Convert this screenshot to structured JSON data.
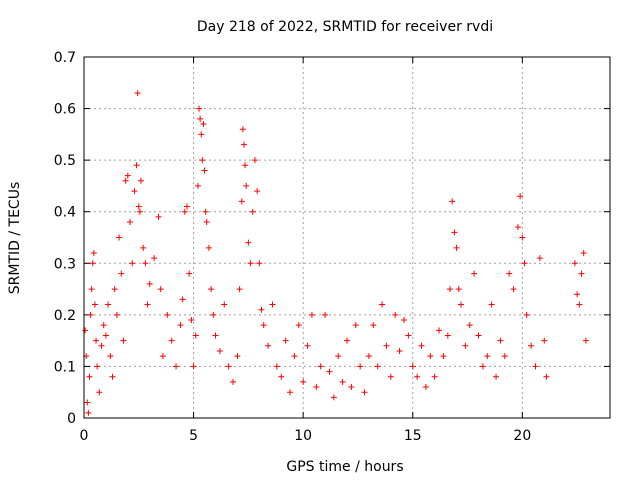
{
  "chart_data": {
    "type": "scatter",
    "title": "Day 218 of 2022, SRMTID for receiver rvdi",
    "xlabel": "GPS time / hours",
    "ylabel": "SRMTID / TECUs",
    "xlim": [
      0,
      24
    ],
    "ylim": [
      0,
      0.7
    ],
    "xticks": [
      0,
      5,
      10,
      15,
      20
    ],
    "xtick_labels": [
      "0",
      "5",
      "10",
      "15",
      "20"
    ],
    "yticks": [
      0,
      0.1,
      0.2,
      0.3,
      0.4,
      0.5,
      0.6,
      0.7
    ],
    "ytick_labels": [
      "0",
      "0.1",
      "0.2",
      "0.3",
      "0.4",
      "0.5",
      "0.6",
      "0.7"
    ],
    "grid": true,
    "marker": "+",
    "color": "#ff0000",
    "series": [
      {
        "name": "SRMTID",
        "points": [
          [
            0.05,
            0.17
          ],
          [
            0.1,
            0.12
          ],
          [
            0.15,
            0.03
          ],
          [
            0.2,
            0.01
          ],
          [
            0.25,
            0.08
          ],
          [
            0.3,
            0.2
          ],
          [
            0.35,
            0.25
          ],
          [
            0.4,
            0.3
          ],
          [
            0.45,
            0.32
          ],
          [
            0.5,
            0.22
          ],
          [
            0.55,
            0.15
          ],
          [
            0.6,
            0.1
          ],
          [
            0.7,
            0.05
          ],
          [
            0.8,
            0.14
          ],
          [
            0.9,
            0.18
          ],
          [
            1.0,
            0.16
          ],
          [
            1.1,
            0.22
          ],
          [
            1.2,
            0.12
          ],
          [
            1.3,
            0.08
          ],
          [
            1.4,
            0.25
          ],
          [
            1.5,
            0.2
          ],
          [
            1.6,
            0.35
          ],
          [
            1.7,
            0.28
          ],
          [
            1.8,
            0.15
          ],
          [
            1.9,
            0.46
          ],
          [
            2.0,
            0.47
          ],
          [
            2.1,
            0.38
          ],
          [
            2.2,
            0.3
          ],
          [
            2.3,
            0.44
          ],
          [
            2.4,
            0.49
          ],
          [
            2.45,
            0.63
          ],
          [
            2.5,
            0.41
          ],
          [
            2.55,
            0.4
          ],
          [
            2.6,
            0.46
          ],
          [
            2.7,
            0.33
          ],
          [
            2.8,
            0.3
          ],
          [
            2.9,
            0.22
          ],
          [
            3.0,
            0.26
          ],
          [
            3.2,
            0.31
          ],
          [
            3.4,
            0.39
          ],
          [
            3.5,
            0.25
          ],
          [
            3.6,
            0.12
          ],
          [
            3.8,
            0.2
          ],
          [
            4.0,
            0.15
          ],
          [
            4.2,
            0.1
          ],
          [
            4.4,
            0.18
          ],
          [
            4.5,
            0.23
          ],
          [
            4.6,
            0.4
          ],
          [
            4.7,
            0.41
          ],
          [
            4.8,
            0.28
          ],
          [
            4.9,
            0.19
          ],
          [
            5.0,
            0.1
          ],
          [
            5.1,
            0.16
          ],
          [
            5.2,
            0.45
          ],
          [
            5.25,
            0.6
          ],
          [
            5.3,
            0.58
          ],
          [
            5.35,
            0.55
          ],
          [
            5.4,
            0.5
          ],
          [
            5.45,
            0.57
          ],
          [
            5.5,
            0.48
          ],
          [
            5.55,
            0.4
          ],
          [
            5.6,
            0.38
          ],
          [
            5.7,
            0.33
          ],
          [
            5.8,
            0.25
          ],
          [
            5.9,
            0.2
          ],
          [
            6.0,
            0.16
          ],
          [
            6.2,
            0.13
          ],
          [
            6.4,
            0.22
          ],
          [
            6.6,
            0.1
          ],
          [
            6.8,
            0.07
          ],
          [
            7.0,
            0.12
          ],
          [
            7.1,
            0.25
          ],
          [
            7.2,
            0.42
          ],
          [
            7.25,
            0.56
          ],
          [
            7.3,
            0.53
          ],
          [
            7.35,
            0.49
          ],
          [
            7.4,
            0.45
          ],
          [
            7.5,
            0.34
          ],
          [
            7.6,
            0.3
          ],
          [
            7.7,
            0.4
          ],
          [
            7.8,
            0.5
          ],
          [
            7.9,
            0.44
          ],
          [
            8.0,
            0.3
          ],
          [
            8.1,
            0.21
          ],
          [
            8.2,
            0.18
          ],
          [
            8.4,
            0.14
          ],
          [
            8.6,
            0.22
          ],
          [
            8.8,
            0.1
          ],
          [
            9.0,
            0.08
          ],
          [
            9.2,
            0.15
          ],
          [
            9.4,
            0.05
          ],
          [
            9.6,
            0.12
          ],
          [
            9.8,
            0.18
          ],
          [
            10.0,
            0.07
          ],
          [
            10.2,
            0.14
          ],
          [
            10.4,
            0.2
          ],
          [
            10.6,
            0.06
          ],
          [
            10.8,
            0.1
          ],
          [
            11.0,
            0.2
          ],
          [
            11.2,
            0.09
          ],
          [
            11.4,
            0.04
          ],
          [
            11.6,
            0.12
          ],
          [
            11.8,
            0.07
          ],
          [
            12.0,
            0.15
          ],
          [
            12.2,
            0.06
          ],
          [
            12.4,
            0.18
          ],
          [
            12.6,
            0.1
          ],
          [
            12.8,
            0.05
          ],
          [
            13.0,
            0.12
          ],
          [
            13.2,
            0.18
          ],
          [
            13.4,
            0.1
          ],
          [
            13.6,
            0.22
          ],
          [
            13.8,
            0.14
          ],
          [
            14.0,
            0.08
          ],
          [
            14.2,
            0.2
          ],
          [
            14.4,
            0.13
          ],
          [
            14.6,
            0.19
          ],
          [
            14.8,
            0.16
          ],
          [
            15.0,
            0.1
          ],
          [
            15.2,
            0.08
          ],
          [
            15.4,
            0.14
          ],
          [
            15.6,
            0.06
          ],
          [
            15.8,
            0.12
          ],
          [
            16.0,
            0.08
          ],
          [
            16.2,
            0.17
          ],
          [
            16.4,
            0.12
          ],
          [
            16.6,
            0.16
          ],
          [
            16.7,
            0.25
          ],
          [
            16.8,
            0.42
          ],
          [
            16.9,
            0.36
          ],
          [
            17.0,
            0.33
          ],
          [
            17.1,
            0.25
          ],
          [
            17.2,
            0.22
          ],
          [
            17.4,
            0.14
          ],
          [
            17.6,
            0.18
          ],
          [
            17.8,
            0.28
          ],
          [
            18.0,
            0.16
          ],
          [
            18.2,
            0.1
          ],
          [
            18.4,
            0.12
          ],
          [
            18.6,
            0.22
          ],
          [
            18.8,
            0.08
          ],
          [
            19.0,
            0.15
          ],
          [
            19.2,
            0.12
          ],
          [
            19.4,
            0.28
          ],
          [
            19.6,
            0.25
          ],
          [
            19.8,
            0.37
          ],
          [
            19.9,
            0.43
          ],
          [
            20.0,
            0.35
          ],
          [
            20.1,
            0.3
          ],
          [
            20.2,
            0.2
          ],
          [
            20.4,
            0.14
          ],
          [
            20.6,
            0.1
          ],
          [
            20.8,
            0.31
          ],
          [
            21.0,
            0.15
          ],
          [
            21.1,
            0.08
          ],
          [
            22.4,
            0.3
          ],
          [
            22.5,
            0.24
          ],
          [
            22.6,
            0.22
          ],
          [
            22.7,
            0.28
          ],
          [
            22.8,
            0.32
          ],
          [
            22.9,
            0.15
          ]
        ]
      }
    ]
  }
}
